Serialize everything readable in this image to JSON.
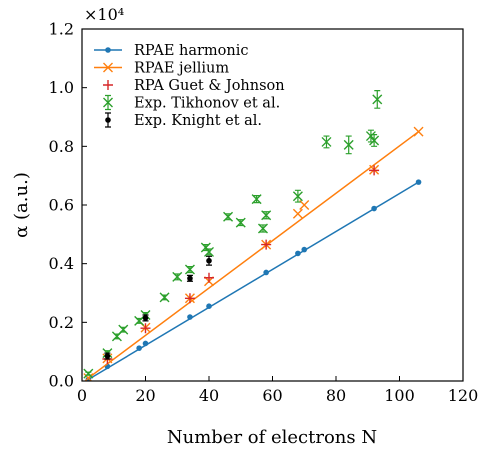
{
  "chart_data": {
    "type": "scatter",
    "title": "",
    "xlabel": "Number of electrons N",
    "ylabel": "α (a.u.)",
    "y_multiplier": "×10⁴",
    "xlim": [
      0,
      120
    ],
    "ylim": [
      0,
      1.2
    ],
    "xticks": [
      0,
      20,
      40,
      60,
      80,
      100,
      120
    ],
    "yticks": [
      0.0,
      0.2,
      0.4,
      0.6,
      0.8,
      1.0,
      1.2
    ],
    "xtick_labels": [
      "0",
      "20",
      "40",
      "60",
      "80",
      "100",
      "120"
    ],
    "ytick_labels": [
      "0.0",
      "0.2",
      "0.4",
      "0.6",
      "0.8",
      "1.0",
      "1.2"
    ],
    "grid": false,
    "legend_position": "top-left",
    "series": [
      {
        "name": "RPAE harmonic",
        "kind": "line-dot",
        "color": "#1f77b4",
        "x": [
          2,
          8,
          18,
          20,
          34,
          40,
          58,
          68,
          70,
          92,
          106
        ],
        "y": [
          0.005,
          0.05,
          0.112,
          0.128,
          0.218,
          0.255,
          0.37,
          0.435,
          0.448,
          0.588,
          0.678
        ]
      },
      {
        "name": "RPAE jellium",
        "kind": "line-x",
        "color": "#ff7f0e",
        "x": [
          2,
          8,
          20,
          34,
          40,
          58,
          68,
          70,
          92,
          106
        ],
        "y": [
          0.01,
          0.077,
          0.182,
          0.282,
          0.34,
          0.465,
          0.57,
          0.6,
          0.72,
          0.85
        ]
      },
      {
        "name": "RPA Guet & Johnson",
        "kind": "plus",
        "color": "#d62728",
        "x": [
          8,
          20,
          34,
          40,
          58,
          92
        ],
        "y": [
          0.075,
          0.18,
          0.282,
          0.352,
          0.465,
          0.718
        ]
      },
      {
        "name": "Exp. Tikhonov et al.",
        "kind": "x-errorbar",
        "color": "#2ca02c",
        "x": [
          2,
          8,
          11,
          13,
          18,
          20,
          26,
          30,
          34,
          39,
          40,
          46,
          50,
          55,
          57,
          58,
          68,
          77,
          84,
          91,
          92,
          93
        ],
        "y": [
          0.025,
          0.095,
          0.152,
          0.175,
          0.205,
          0.225,
          0.285,
          0.355,
          0.38,
          0.455,
          0.44,
          0.56,
          0.54,
          0.62,
          0.52,
          0.565,
          0.63,
          0.815,
          0.805,
          0.835,
          0.82,
          0.96
        ],
        "yerr": [
          0.005,
          0.008,
          0.008,
          0.008,
          0.008,
          0.008,
          0.008,
          0.01,
          0.01,
          0.01,
          0.01,
          0.01,
          0.01,
          0.012,
          0.012,
          0.012,
          0.02,
          0.02,
          0.03,
          0.02,
          0.02,
          0.03
        ]
      },
      {
        "name": "Exp. Knight et al.",
        "kind": "dot-errorbar",
        "color": "#000000",
        "x": [
          8,
          20,
          34,
          40
        ],
        "y": [
          0.085,
          0.215,
          0.35,
          0.41
        ],
        "yerr": [
          0.01,
          0.01,
          0.01,
          0.015
        ]
      }
    ]
  }
}
